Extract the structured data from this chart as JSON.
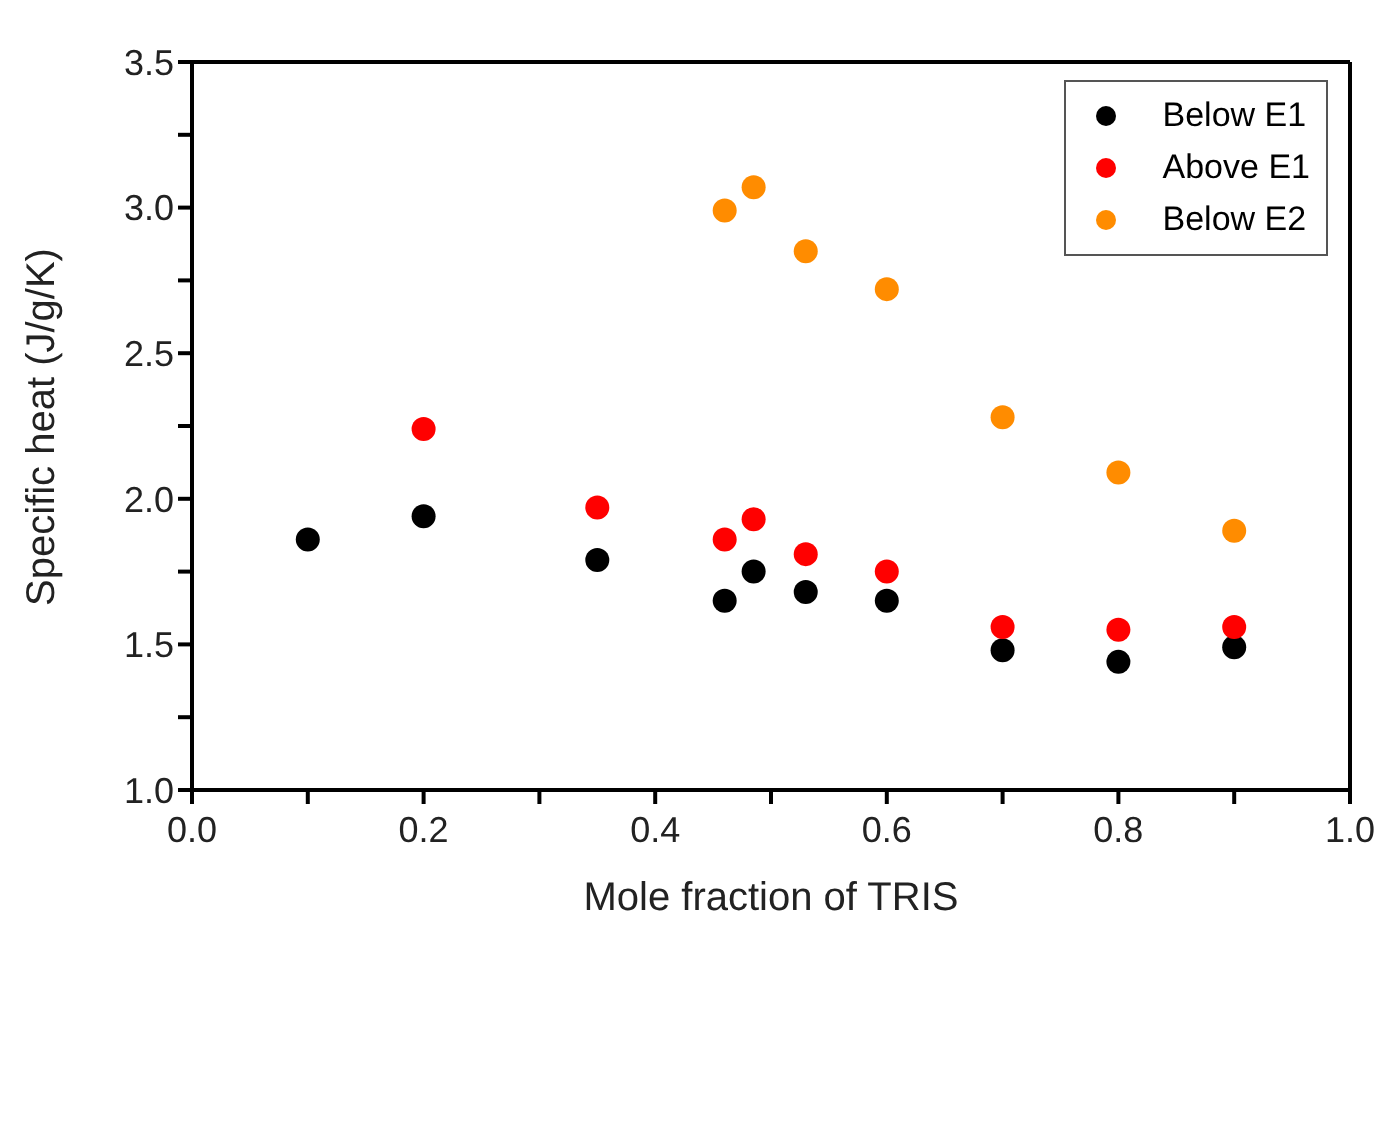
{
  "chart_data": {
    "type": "scatter",
    "xlabel": "Mole fraction of TRIS",
    "ylabel": "Specific heat (J/g/K)",
    "xlim": [
      0,
      1
    ],
    "xticks": [
      {
        "value": 0,
        "label": "0.0"
      },
      {
        "value": 0.1,
        "label": null
      },
      0.2,
      {
        "value": 0.3,
        "label": null
      },
      0.4,
      {
        "value": 0.5,
        "label": null
      },
      0.6,
      {
        "value": 0.7,
        "label": null
      },
      0.8,
      {
        "value": 0.9,
        "label": null
      },
      {
        "value": 1,
        "label": "1.0"
      }
    ],
    "ylim": [
      1,
      3.5
    ],
    "yticks": [
      {
        "value": 1,
        "label": "1.0"
      },
      {
        "value": 1.25,
        "label": null
      },
      1.5,
      {
        "value": 1.75,
        "label": null
      },
      {
        "value": 2,
        "label": "2.0"
      },
      {
        "value": 2.25,
        "label": null
      },
      2.5,
      {
        "value": 2.75,
        "label": null
      },
      {
        "value": 3,
        "label": "3.0"
      },
      {
        "value": 3.25,
        "label": null
      },
      3.5
    ],
    "grid": false,
    "legend": "top right",
    "marker": "circle",
    "series": [
      {
        "name": "Below E1",
        "color": "#000000",
        "x": [
          0.1,
          0.2,
          0.35,
          0.46,
          0.485,
          0.53,
          0.6,
          0.7,
          0.8,
          0.9
        ],
        "values": [
          1.86,
          1.94,
          1.79,
          1.65,
          1.75,
          1.68,
          1.65,
          1.48,
          1.44,
          1.49
        ]
      },
      {
        "name": "Above E1",
        "color": "#ff0000",
        "x": [
          0.2,
          0.35,
          0.46,
          0.485,
          0.53,
          0.6,
          0.7,
          0.8,
          0.9
        ],
        "values": [
          2.24,
          1.97,
          1.86,
          1.93,
          1.81,
          1.75,
          1.56,
          1.55,
          1.56
        ]
      },
      {
        "name": "Below E2",
        "color": "#ff8c00",
        "x": [
          0.46,
          0.485,
          0.53,
          0.6,
          0.7,
          0.8,
          0.9
        ],
        "values": [
          2.99,
          3.07,
          2.85,
          2.72,
          2.28,
          2.09,
          1.89
        ]
      }
    ]
  }
}
